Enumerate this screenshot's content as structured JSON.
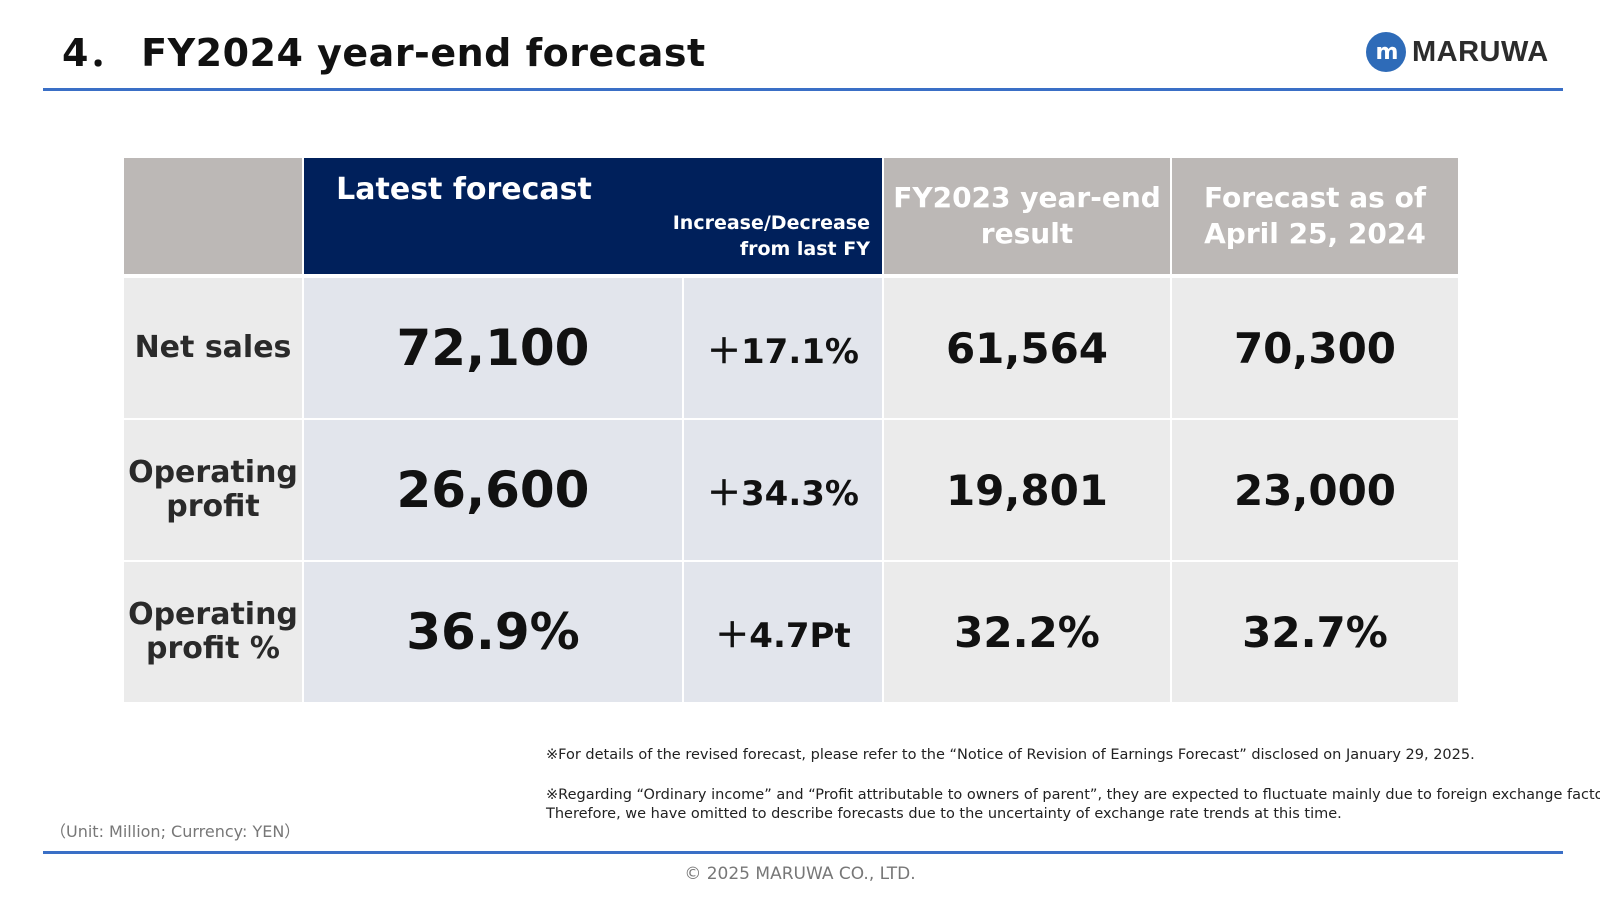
{
  "header": {
    "title": "4． FY2024 year-end forecast",
    "logo_mark": "m",
    "logo_text": "MARUWA",
    "accent_color": "#3a6fc6"
  },
  "table": {
    "columns": {
      "latest": "Latest forecast",
      "change": "Increase/Decrease\nfrom last FY",
      "fy2023": "FY2023 year-end\nresult",
      "april": "Forecast as of\nApril 25, 2024"
    },
    "rows": [
      {
        "label": "Net sales",
        "latest": "72,100",
        "change": "＋17.1%",
        "fy2023": "61,564",
        "april": "70,300"
      },
      {
        "label": "Operating\nprofit",
        "latest": "26,600",
        "change": "＋34.3%",
        "fy2023": "19,801",
        "april": "23,000"
      },
      {
        "label": "Operating\nprofit %",
        "latest": "36.9%",
        "change": "＋4.7Pt",
        "fy2023": "32.2%",
        "april": "32.7%"
      }
    ]
  },
  "notes": {
    "note1": "※For details of the revised forecast, please refer to the “Notice of Revision of Earnings Forecast” disclosed on January 29, 2025.",
    "note2_line1": "※Regarding “Ordinary income” and “Profit attributable to owners of parent”, they are expected to fluctuate mainly due to foreign exchange factors.",
    "note2_line2": "Therefore, we have omitted to describe forecasts due to the uncertainty of exchange rate trends at this time.",
    "unit": "（Unit: Million; Currency: YEN）"
  },
  "footer": {
    "copyright": "© 2025 MARUWA CO., LTD."
  }
}
